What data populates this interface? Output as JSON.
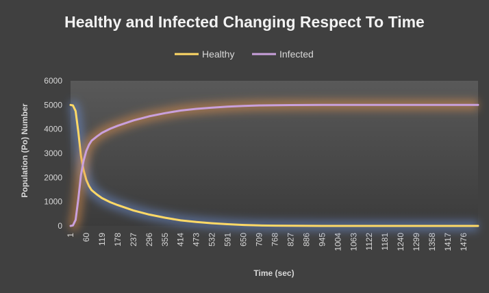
{
  "chart_data": {
    "type": "line",
    "title": "Healthy and Infected Changing Respect To Time",
    "xlabel": "Time (sec)",
    "ylabel": "Population (Po) Number",
    "xlim": [
      1,
      1530
    ],
    "ylim": [
      0,
      6000
    ],
    "yticks": [
      0,
      1000,
      2000,
      3000,
      4000,
      5000,
      6000
    ],
    "xticks": [
      1,
      60,
      119,
      178,
      237,
      296,
      355,
      414,
      473,
      532,
      591,
      650,
      709,
      768,
      827,
      886,
      945,
      1004,
      1063,
      1122,
      1181,
      1240,
      1299,
      1358,
      1417,
      1476
    ],
    "legend_position": "top",
    "grid": false,
    "series": [
      {
        "name": "Healthy",
        "color": "#ffd966",
        "x": [
          1,
          10,
          20,
          30,
          40,
          50,
          60,
          70,
          80,
          100,
          119,
          150,
          178,
          237,
          296,
          355,
          414,
          473,
          532,
          591,
          650,
          709,
          768,
          827,
          886,
          945,
          1004,
          1063,
          1122,
          1181,
          1240,
          1299,
          1358,
          1417,
          1476,
          1530
        ],
        "values": [
          5000,
          4980,
          4750,
          3900,
          2900,
          2300,
          1900,
          1650,
          1480,
          1300,
          1150,
          980,
          860,
          640,
          470,
          340,
          230,
          160,
          110,
          70,
          40,
          20,
          10,
          5,
          2,
          0,
          0,
          0,
          0,
          0,
          0,
          0,
          0,
          0,
          0,
          0
        ]
      },
      {
        "name": "Infected",
        "color": "#c9a0dc",
        "x": [
          1,
          10,
          20,
          30,
          40,
          50,
          60,
          70,
          80,
          100,
          119,
          150,
          178,
          237,
          296,
          355,
          414,
          473,
          532,
          591,
          650,
          709,
          768,
          827,
          886,
          945,
          1004,
          1063,
          1122,
          1181,
          1240,
          1299,
          1358,
          1417,
          1476,
          1530
        ],
        "values": [
          0,
          20,
          250,
          1100,
          2100,
          2700,
          3100,
          3350,
          3520,
          3700,
          3850,
          4020,
          4140,
          4360,
          4530,
          4660,
          4770,
          4840,
          4890,
          4930,
          4960,
          4980,
          4990,
          4995,
          4998,
          5000,
          5000,
          5000,
          5000,
          5000,
          5000,
          5000,
          5000,
          5000,
          5000,
          5000
        ]
      }
    ]
  }
}
